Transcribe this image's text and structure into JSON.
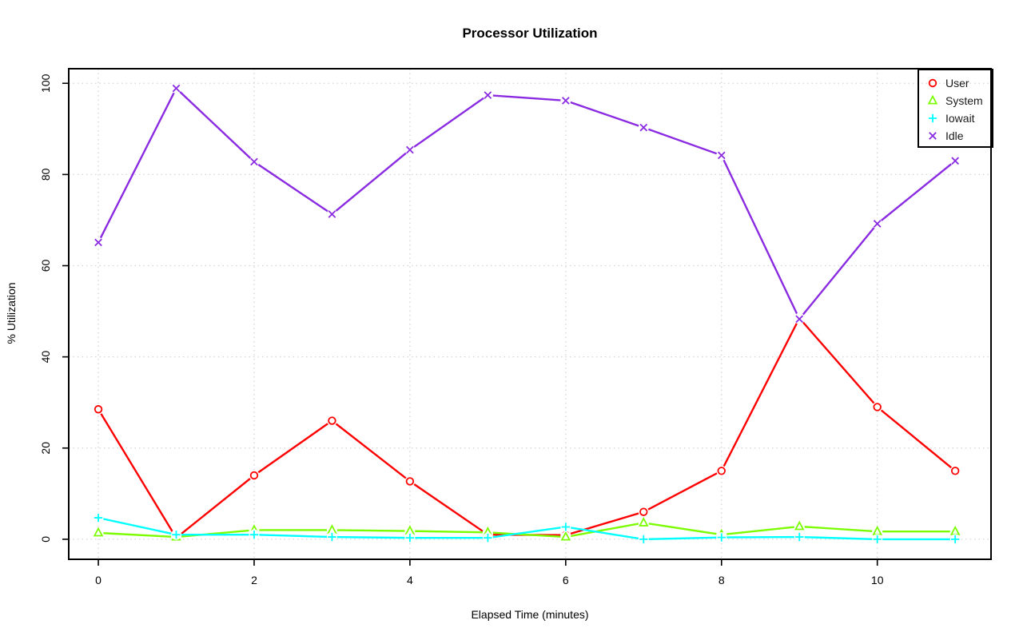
{
  "chart_data": {
    "type": "line",
    "title": "Processor Utilization",
    "xlabel": "Elapsed Time (minutes)",
    "ylabel": "% Utilization",
    "x": [
      0,
      1,
      2,
      3,
      4,
      5,
      6,
      7,
      8,
      9,
      10,
      11
    ],
    "series": [
      {
        "name": "User",
        "color": "#FF0000",
        "marker": "circle",
        "values": [
          28.5,
          0.3,
          14.0,
          26.0,
          12.7,
          1.0,
          0.9,
          6.0,
          15.0,
          48.5,
          29.0,
          15.0
        ]
      },
      {
        "name": "System",
        "color": "#7CFC00",
        "marker": "triangle",
        "values": [
          1.4,
          0.5,
          2.0,
          2.0,
          1.8,
          1.5,
          0.5,
          3.6,
          1.0,
          2.8,
          1.7,
          1.7
        ]
      },
      {
        "name": "Iowait",
        "color": "#00FFFF",
        "marker": "plus",
        "values": [
          4.7,
          1.0,
          1.0,
          0.5,
          0.3,
          0.3,
          2.7,
          0.0,
          0.4,
          0.5,
          0.0,
          0.0
        ]
      },
      {
        "name": "Idle",
        "color": "#8A2BE2",
        "marker": "x",
        "values": [
          65.1,
          98.9,
          82.8,
          71.3,
          85.4,
          97.4,
          96.2,
          90.3,
          84.2,
          48.3,
          69.2,
          83.0
        ]
      }
    ],
    "x_ticks": [
      0,
      2,
      4,
      6,
      8,
      10
    ],
    "y_ticks": [
      0,
      20,
      40,
      60,
      80,
      100
    ],
    "x_range": [
      -0.38,
      11.46
    ],
    "y_range": [
      -4.4,
      103.2
    ],
    "grid": "dotted",
    "grid_color": "#D4D4D4",
    "axis_color": "#000000",
    "legend_position": "top-right"
  }
}
